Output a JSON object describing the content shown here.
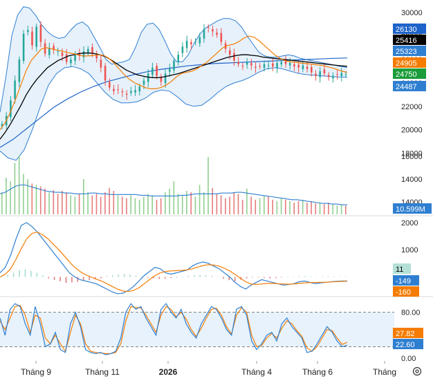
{
  "chart_data": {
    "type": "candlestick",
    "x_labels": [
      "Tháng 9",
      "Tháng 11",
      "2026",
      "Tháng 4",
      "Tháng 6",
      "Tháng"
    ],
    "colors": {
      "up": "#26a69a",
      "down": "#ef5350",
      "sma": "#000000",
      "ema": "#f57c00",
      "bb": "#2f7fd1",
      "ma200": "#1e63c9",
      "bb_fill": "#e3f0fb",
      "vol_up": "#8fcf8f",
      "vol_down": "#e57b7b",
      "vol_ma": "#2f7fd1",
      "macd": "#2f7fd1",
      "signal": "#f57c00",
      "hist_up": "#a8dcd2",
      "hist_down": "#e57b7b",
      "stoch_k": "#2f7fd1",
      "stoch_d": "#f57c00",
      "stoch_band": "#e3f0fb"
    },
    "price_panel": {
      "ylim": [
        16800,
        30600
      ],
      "ticks": [
        30000,
        28000,
        26000,
        24000,
        22000,
        20000,
        18000
      ],
      "tick_labels": [
        "30000",
        "28000",
        "26000",
        "24000",
        "22000",
        "20000",
        "18000"
      ],
      "badges": [
        {
          "label": "26130",
          "value": 26130,
          "bg": "#1e63c9",
          "fg": "#ffffff"
        },
        {
          "label": "25416",
          "value": 25416,
          "bg": "#000000",
          "fg": "#ffffff"
        },
        {
          "label": "25323",
          "value": 25323,
          "bg": "#2f7fd1",
          "fg": "#ffffff"
        },
        {
          "label": "24905",
          "value": 24905,
          "bg": "#f57c00",
          "fg": "#ffffff"
        },
        {
          "label": "24750",
          "value": 24750,
          "bg": "#1a9c3a",
          "fg": "#ffffff"
        },
        {
          "label": "24487",
          "value": 24487,
          "bg": "#2f7fd1",
          "fg": "#ffffff"
        }
      ],
      "close": [
        20500,
        21200,
        22500,
        24200,
        26000,
        28200,
        28500,
        27200,
        28800,
        27500,
        26500,
        27000,
        26800,
        26700,
        26300,
        25800,
        26000,
        26400,
        26300,
        26700,
        26900,
        26500,
        26100,
        25300,
        24200,
        23600,
        23300,
        23400,
        23200,
        23000,
        23300,
        23400,
        23700,
        24200,
        24800,
        25300,
        24600,
        24100,
        24800,
        25200,
        25900,
        26400,
        27100,
        27600,
        27300,
        27500,
        27900,
        28600,
        28700,
        28400,
        28100,
        27500,
        26900,
        26400,
        25900,
        25600,
        25400,
        25800,
        25500,
        25300,
        25400,
        25600,
        25500,
        25400,
        25700,
        25800,
        25600,
        25700,
        25400,
        25300,
        25500,
        25200,
        24900,
        24600,
        25000,
        24800,
        24500,
        24600,
        24700,
        24850,
        24750
      ],
      "sma": [
        19200,
        19800,
        20500,
        21300,
        22100,
        23000,
        23700,
        24300,
        24800,
        25300,
        25600,
        25900,
        26100,
        26300,
        26400,
        26500,
        26550,
        26550,
        26500,
        26400,
        26250,
        26000,
        25700,
        25400,
        25100,
        24900,
        24700,
        24600,
        24500,
        24450,
        24450,
        24500,
        24600,
        24700,
        24800,
        24950,
        25100,
        25250,
        25400,
        25550,
        25700,
        25850,
        26000,
        26150,
        26250,
        26350,
        26400,
        26400,
        26350,
        26300,
        26200,
        26150,
        26100,
        26050,
        26000,
        25950,
        25900,
        25850,
        25800,
        25750,
        25700,
        25650,
        25600,
        25550,
        25500,
        25450,
        25416
      ],
      "ema": [
        20000,
        20600,
        21500,
        22600,
        23800,
        25000,
        25900,
        26400,
        26900,
        27000,
        26900,
        26800,
        26700,
        26600,
        26500,
        26400,
        26300,
        26300,
        26350,
        26400,
        26350,
        26100,
        25700,
        25200,
        24700,
        24300,
        24000,
        23800,
        23600,
        23500,
        23500,
        23600,
        23800,
        24100,
        24500,
        24800,
        24900,
        25000,
        25200,
        25500,
        25800,
        26200,
        26600,
        27000,
        27200,
        27300,
        27500,
        27800,
        28000,
        27900,
        27600,
        27200,
        26800,
        26400,
        26100,
        25900,
        25800,
        25750,
        25700,
        25650,
        25600,
        25550,
        25500,
        25400,
        25300,
        25150,
        25000,
        24905
      ],
      "bb_upper": [
        21500,
        24500,
        28000,
        29800,
        30500,
        30400,
        29800,
        29000,
        28400,
        28000,
        27800,
        27900,
        28500,
        29000,
        29200,
        28800,
        27900,
        27000,
        26000,
        25600,
        25700,
        25800,
        26000,
        27000,
        28300,
        29000,
        29100,
        28600,
        27600,
        26500,
        25800,
        25800,
        26400,
        27400,
        28200,
        28700,
        29000,
        29300,
        29500,
        29500,
        29300,
        28800,
        28000,
        27300,
        26600,
        26300,
        26200,
        26200,
        26300,
        26400,
        26300,
        26100,
        26000,
        25900,
        25800,
        25700,
        25600,
        25500,
        25400,
        25323
      ],
      "bb_lower": [
        18200,
        17600,
        17400,
        18300,
        20000,
        22000,
        23800,
        24800,
        25300,
        25400,
        25200,
        24800,
        24000,
        23200,
        22600,
        22300,
        22300,
        22400,
        22700,
        23200,
        23400,
        23300,
        22800,
        22200,
        22000,
        22100,
        22600,
        23200,
        23700,
        24000,
        24200,
        24500,
        24900,
        25200,
        25300,
        25200,
        25000,
        24800,
        24700,
        24650,
        24600,
        24550,
        24500,
        24487
      ],
      "ma200": [
        18500,
        19200,
        20100,
        21000,
        21900,
        22600,
        23200,
        23700,
        24100,
        24400,
        24700,
        24950,
        25150,
        25300,
        25450,
        25550,
        25650,
        25700,
        25750,
        25800,
        25850,
        25900,
        25950,
        26000,
        26050,
        26100,
        26130
      ]
    },
    "volume_panel": {
      "value_label": "10.599M",
      "ylim": [
        0,
        80
      ],
      "values": [
        30,
        50,
        45,
        70,
        80,
        55,
        48,
        42,
        40,
        38,
        35,
        30,
        33,
        28,
        32,
        30,
        26,
        24,
        28,
        48,
        30,
        26,
        28,
        24,
        30,
        36,
        32,
        26,
        24,
        22,
        26,
        22,
        20,
        24,
        28,
        26,
        20,
        22,
        30,
        35,
        45,
        28,
        26,
        32,
        30,
        24,
        40,
        30,
        78,
        36,
        28,
        26,
        22,
        24,
        30,
        28,
        20,
        35,
        24,
        20,
        22,
        26,
        24,
        20,
        18,
        22,
        20,
        18,
        16,
        18,
        20,
        16,
        18,
        15,
        16,
        14,
        16,
        14,
        12,
        13,
        12
      ],
      "ma": [
        28,
        30,
        34,
        38,
        40,
        40,
        38,
        36,
        34,
        32,
        31,
        30,
        30,
        29,
        29,
        28,
        28,
        28,
        29,
        29,
        28,
        28,
        27,
        27,
        27,
        27,
        27,
        27,
        26,
        26,
        25,
        25,
        25,
        25,
        25,
        25,
        26,
        26,
        27,
        28,
        28,
        28,
        28,
        28,
        29,
        29,
        29,
        30,
        30,
        29,
        28,
        27,
        26,
        25,
        24,
        23,
        22,
        21,
        20,
        20,
        19,
        18,
        17,
        16,
        15,
        15,
        14,
        14,
        13,
        13
      ]
    },
    "macd_panel": {
      "ylim": [
        -650,
        2150
      ],
      "ticks": [
        2000,
        1000
      ],
      "tick_labels": [
        "2000",
        "1000"
      ],
      "badges": [
        {
          "label": "11",
          "value": 11,
          "bg": "#b5e0d8",
          "fg": "#000000"
        },
        {
          "label": "-149",
          "value": -149,
          "bg": "#2f7fd1",
          "fg": "#ffffff"
        },
        {
          "label": "-160",
          "value": -160,
          "bg": "#f57c00",
          "fg": "#ffffff"
        }
      ],
      "macd": [
        150,
        350,
        800,
        1400,
        1900,
        2000,
        1850,
        1650,
        1400,
        1150,
        900,
        650,
        400,
        150,
        0,
        -100,
        -150,
        -200,
        -250,
        -350,
        -450,
        -550,
        -620,
        -600,
        -500,
        -350,
        -150,
        50,
        200,
        350,
        300,
        150,
        100,
        150,
        200,
        250,
        400,
        500,
        550,
        500,
        400,
        300,
        150,
        0,
        -200,
        -350,
        -450,
        -300,
        -200,
        -100,
        -150,
        -200,
        -250,
        -300,
        -280,
        -250,
        -180,
        -150,
        -200,
        -250,
        -220,
        -200,
        -180,
        -160,
        -150,
        -149
      ],
      "signal": [
        0,
        100,
        300,
        650,
        1050,
        1400,
        1600,
        1650,
        1550,
        1400,
        1200,
        1000,
        780,
        550,
        350,
        200,
        80,
        0,
        -80,
        -150,
        -250,
        -350,
        -450,
        -520,
        -540,
        -500,
        -400,
        -250,
        -100,
        50,
        150,
        200,
        220,
        230,
        240,
        260,
        300,
        360,
        420,
        450,
        440,
        400,
        320,
        220,
        90,
        -50,
        -180,
        -260,
        -280,
        -260,
        -240,
        -240,
        -250,
        -260,
        -270,
        -260,
        -240,
        -220,
        -210,
        -205,
        -200,
        -195,
        -185,
        -175,
        -165,
        -160
      ],
      "hist": [
        30,
        80,
        160,
        250,
        280,
        220,
        150,
        60,
        -50,
        -110,
        -160,
        -220,
        -200,
        -180,
        -150,
        -120,
        -90,
        -50,
        30,
        60,
        90,
        110,
        80,
        40,
        20,
        -30,
        -50,
        -70,
        -60,
        -40,
        -20,
        10,
        40,
        70,
        80,
        60,
        40,
        20,
        -60,
        -120,
        -160,
        -100,
        -50,
        -20,
        -10,
        -30,
        -50,
        -40,
        -20,
        0,
        15,
        25,
        30,
        20,
        15,
        20,
        25,
        20,
        15,
        11
      ]
    },
    "stoch_panel": {
      "ylim": [
        0,
        100
      ],
      "ticks": [
        80,
        0
      ],
      "tick_labels": [
        "80.00",
        "0.00"
      ],
      "upper_band": 80,
      "lower_band": 20,
      "badges": [
        {
          "label": "27.82",
          "value": 27.82,
          "bg": "#f57c00",
          "fg": "#ffffff"
        },
        {
          "label": "22.60",
          "value": 22.6,
          "bg": "#2f7fd1",
          "fg": "#ffffff"
        }
      ],
      "k": [
        70,
        40,
        85,
        95,
        90,
        60,
        40,
        90,
        60,
        20,
        25,
        45,
        15,
        10,
        60,
        80,
        55,
        15,
        10,
        8,
        10,
        6,
        8,
        12,
        35,
        80,
        95,
        85,
        90,
        70,
        55,
        40,
        85,
        95,
        80,
        70,
        85,
        60,
        45,
        35,
        60,
        75,
        90,
        85,
        70,
        50,
        40,
        85,
        90,
        75,
        30,
        15,
        25,
        40,
        45,
        30,
        60,
        70,
        55,
        45,
        35,
        10,
        12,
        25,
        40,
        55,
        45,
        30,
        20,
        22.6
      ],
      "d": [
        65,
        50,
        70,
        90,
        92,
        75,
        45,
        75,
        70,
        35,
        25,
        40,
        25,
        12,
        45,
        75,
        60,
        25,
        12,
        10,
        9,
        8,
        8,
        10,
        25,
        65,
        90,
        88,
        88,
        75,
        60,
        45,
        75,
        90,
        85,
        72,
        80,
        68,
        50,
        38,
        52,
        70,
        85,
        87,
        75,
        55,
        42,
        75,
        88,
        80,
        40,
        20,
        22,
        35,
        43,
        35,
        52,
        65,
        60,
        48,
        38,
        18,
        12,
        20,
        35,
        50,
        48,
        35,
        24,
        27.82
      ]
    }
  }
}
